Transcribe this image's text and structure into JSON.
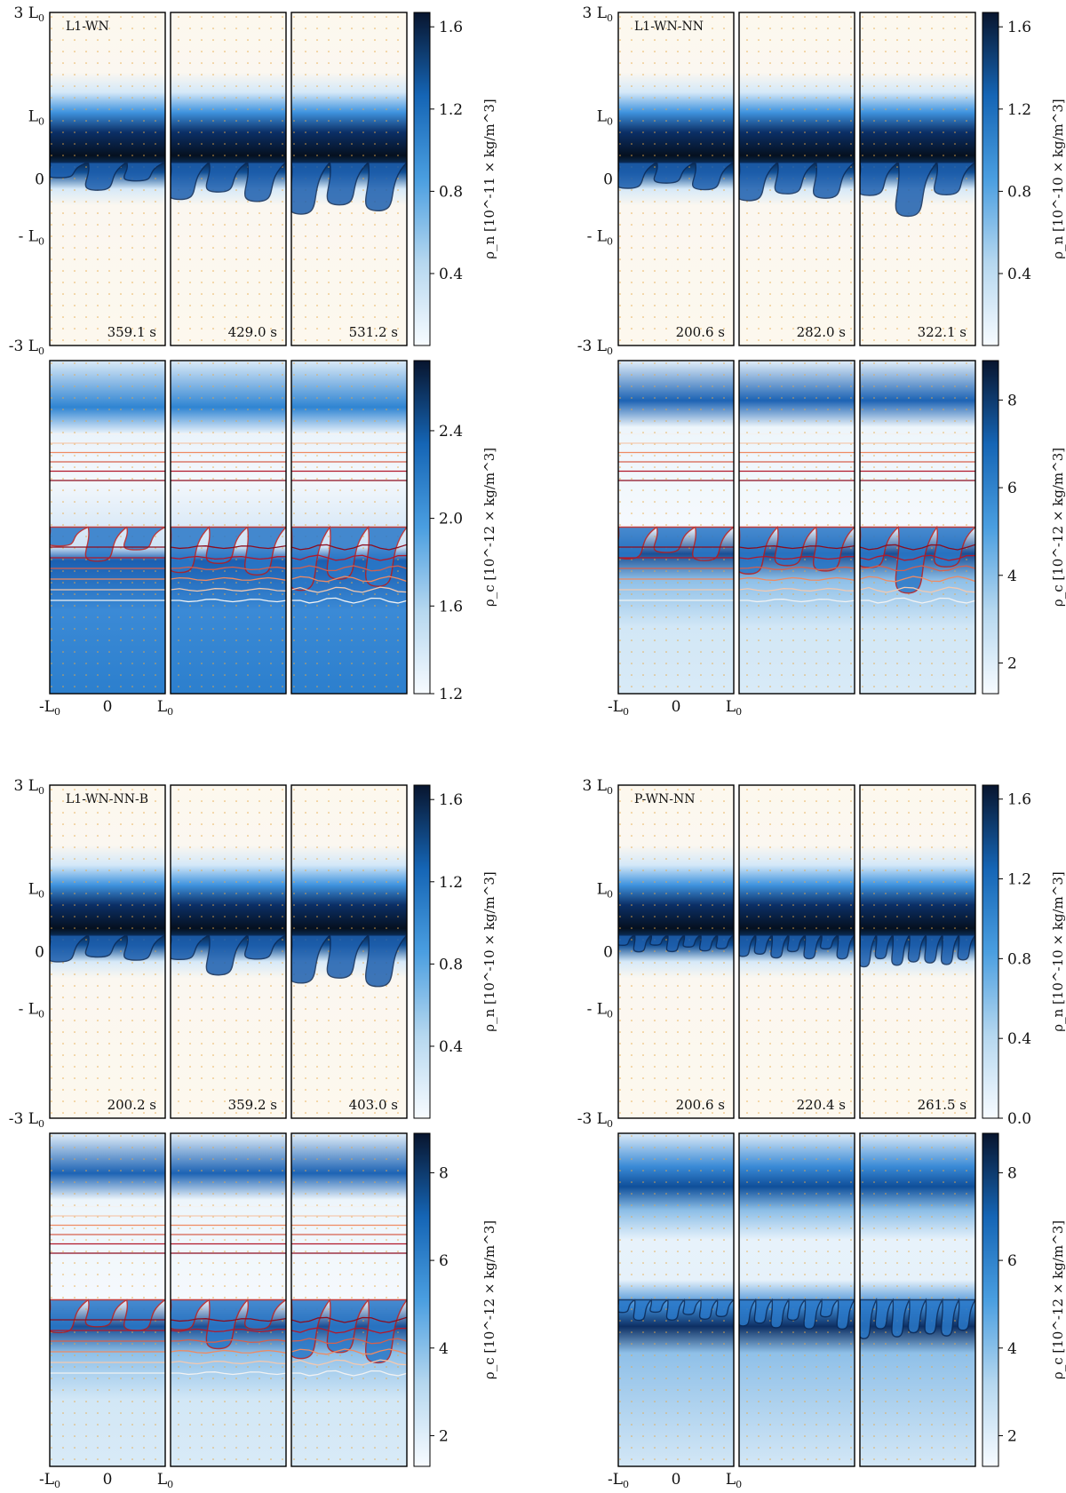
{
  "chart_data": [
    {
      "type": "heatmap",
      "run": "L1-WN",
      "times": [
        "359.1 s",
        "429.0 s",
        "531.2 s"
      ],
      "neutral_panel": {
        "cbar_label": "ρ_n [10^-11 × kg/m^3]",
        "cbar_ticks": [
          "0.4",
          "0.8",
          "1.2",
          "1.6"
        ],
        "cbar_range": [
          0.05,
          1.67
        ],
        "cbar_ticks_v": [
          0.4,
          0.8,
          1.2,
          1.6
        ]
      },
      "charged_panel": {
        "cbar_label": "ρ_c [10^-12 × kg/m^3]",
        "cbar_ticks": [
          "1.2",
          "1.6",
          "2.0",
          "2.4"
        ],
        "cbar_range": [
          1.2,
          2.72
        ],
        "cbar_ticks_v": [
          1.2,
          1.6,
          2.0,
          2.4
        ]
      },
      "y_ticks": [
        "3 L0",
        "L0",
        "0",
        "- L0",
        "-3 L0"
      ],
      "x_ticks": [
        "-L0",
        "0",
        "L0"
      ]
    },
    {
      "type": "heatmap",
      "run": "L1-WN-NN",
      "times": [
        "200.6 s",
        "282.0 s",
        "322.1 s"
      ],
      "neutral_panel": {
        "cbar_label": "ρ_n [10^-10 × kg/m^3]",
        "cbar_ticks": [
          "0.4",
          "0.8",
          "1.2",
          "1.6"
        ],
        "cbar_range": [
          0.05,
          1.67
        ],
        "cbar_ticks_v": [
          0.4,
          0.8,
          1.2,
          1.6
        ]
      },
      "charged_panel": {
        "cbar_label": "ρ_c [10^-12 × kg/m^3]",
        "cbar_ticks": [
          "2",
          "4",
          "6",
          "8"
        ],
        "cbar_range": [
          1.3,
          8.9
        ],
        "cbar_ticks_v": [
          2,
          4,
          6,
          8
        ]
      },
      "y_ticks": [
        "3 L0",
        "L0",
        "0",
        "- L0",
        "-3 L0"
      ],
      "x_ticks": [
        "-L0",
        "0",
        "L0"
      ]
    },
    {
      "type": "heatmap",
      "run": "L1-WN-NN-B",
      "times": [
        "200.2 s",
        "359.2 s",
        "403.0 s"
      ],
      "neutral_panel": {
        "cbar_label": "ρ_n [10^-10 × kg/m^3]",
        "cbar_ticks": [
          "0.4",
          "0.8",
          "1.2",
          "1.6"
        ],
        "cbar_range": [
          0.05,
          1.67
        ],
        "cbar_ticks_v": [
          0.4,
          0.8,
          1.2,
          1.6
        ]
      },
      "charged_panel": {
        "cbar_label": "ρ_c [10^-12 × kg/m^3]",
        "cbar_ticks": [
          "2",
          "4",
          "6",
          "8"
        ],
        "cbar_range": [
          1.3,
          8.9
        ],
        "cbar_ticks_v": [
          2,
          4,
          6,
          8
        ]
      },
      "y_ticks": [
        "3 L0",
        "L0",
        "0",
        "- L0",
        "-3 L0"
      ],
      "x_ticks": [
        "-L0",
        "0",
        "L0"
      ]
    },
    {
      "type": "heatmap",
      "run": "P-WN-NN",
      "times": [
        "200.6 s",
        "220.4 s",
        "261.5 s"
      ],
      "neutral_panel": {
        "cbar_label": "ρ_n [10^-10 × kg/m^3]",
        "cbar_ticks": [
          "0.0",
          "0.4",
          "0.8",
          "1.2",
          "1.6"
        ],
        "cbar_range": [
          0.0,
          1.67
        ],
        "cbar_ticks_v": [
          0.0,
          0.4,
          0.8,
          1.2,
          1.6
        ]
      },
      "charged_panel": {
        "cbar_label": "ρ_c [10^-12 × kg/m^3]",
        "cbar_ticks": [
          "2",
          "4",
          "6",
          "8"
        ],
        "cbar_range": [
          1.3,
          8.9
        ],
        "cbar_ticks_v": [
          2,
          4,
          6,
          8
        ]
      },
      "y_ticks": [
        "3 L0",
        "L0",
        "0",
        "- L0",
        "-3 L0"
      ],
      "x_ticks": [
        "-L0",
        "0",
        "L0"
      ]
    }
  ]
}
